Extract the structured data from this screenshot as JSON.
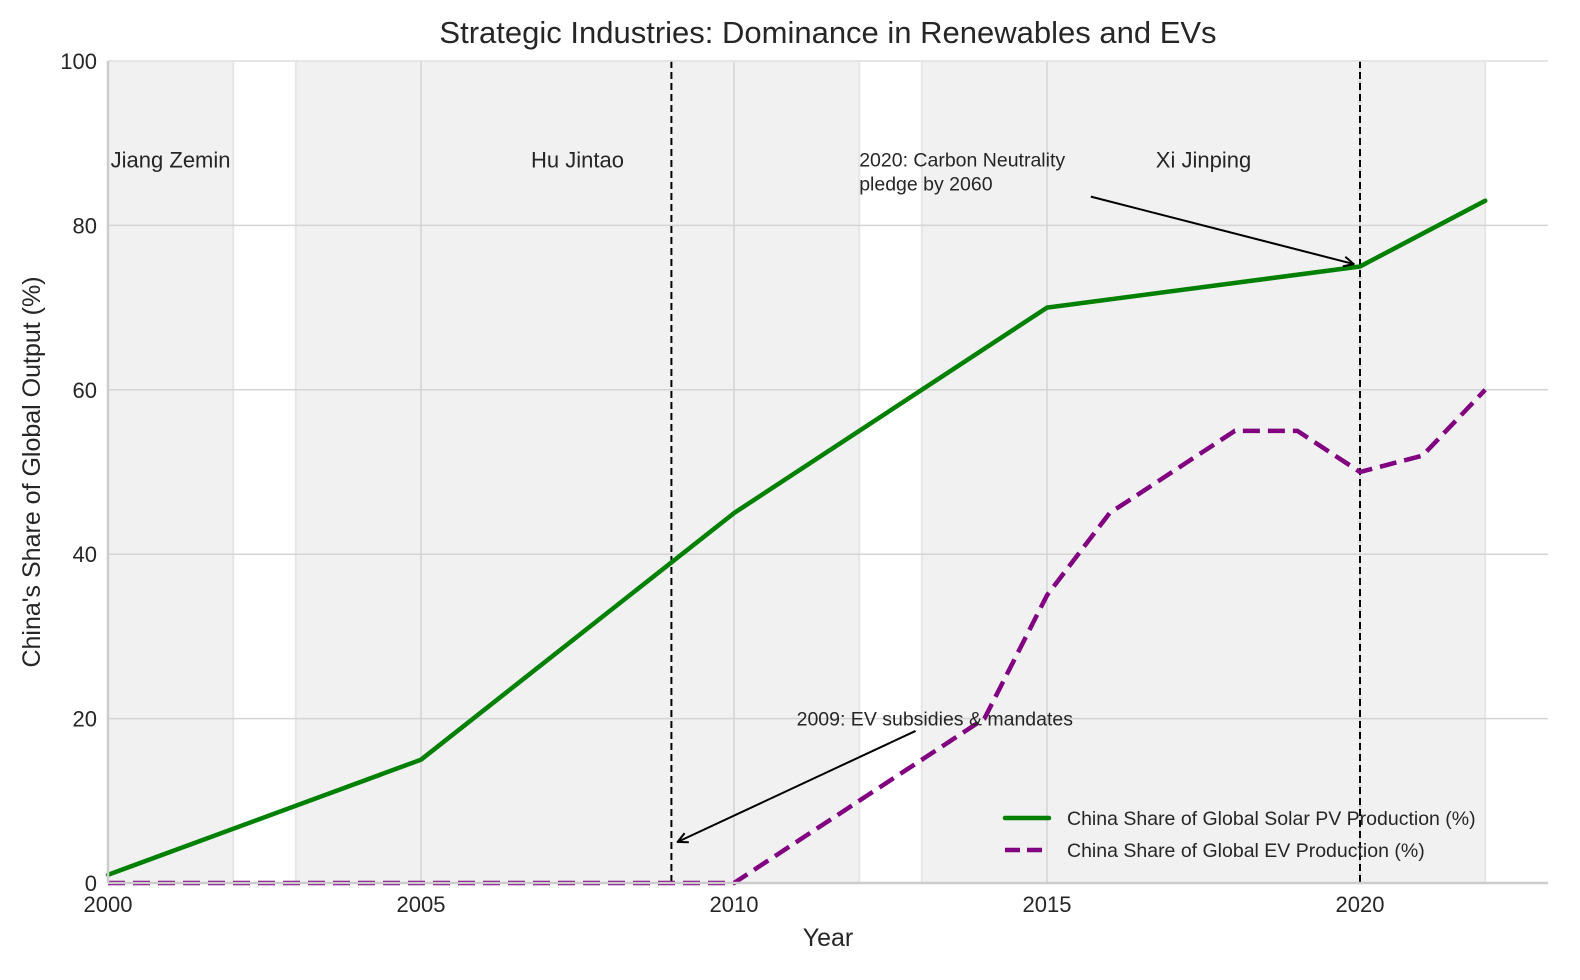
{
  "chart_data": {
    "type": "line",
    "title": "Strategic Industries: Dominance in Renewables and EVs",
    "xlabel": "Year",
    "ylabel": "China's Share of Global Output (%)",
    "xlim": [
      2000,
      2023
    ],
    "ylim": [
      0,
      100
    ],
    "xticks": [
      2000,
      2005,
      2010,
      2015,
      2020
    ],
    "xtick_labels": [
      "2000",
      "2005",
      "2010",
      "2015",
      "2020"
    ],
    "yticks": [
      0,
      20,
      40,
      60,
      80,
      100
    ],
    "ytick_labels": [
      "0",
      "20",
      "40",
      "60",
      "80",
      "100"
    ],
    "grid": true,
    "series": [
      {
        "name": "China Share of Global Solar PV Production (%)",
        "color": "#008000",
        "style": "solid",
        "x": [
          2000,
          2005,
          2010,
          2015,
          2020,
          2022
        ],
        "y": [
          1,
          15,
          45,
          70,
          75,
          83
        ]
      },
      {
        "name": "China Share of Global EV Production (%)",
        "color": "#800080",
        "style": "dashed",
        "x": [
          2000,
          2001,
          2002,
          2003,
          2004,
          2005,
          2006,
          2007,
          2008,
          2009,
          2010,
          2011,
          2012,
          2013,
          2014,
          2015,
          2016,
          2017,
          2018,
          2019,
          2020,
          2021,
          2022
        ],
        "y": [
          0,
          0,
          0,
          0,
          0,
          0,
          0,
          0,
          0,
          0,
          0,
          5,
          10,
          15,
          20,
          35,
          45,
          50,
          55,
          55,
          50,
          52,
          60
        ]
      }
    ],
    "eras": [
      {
        "label": "Jiang Zemin",
        "start": 2000,
        "end": 2002
      },
      {
        "label": "Hu Jintao",
        "start": 2003,
        "end": 2012
      },
      {
        "label": "Xi Jinping",
        "start": 2013,
        "end": 2022
      }
    ],
    "era_colors": {
      "shade": "#f1f1f1"
    },
    "vlines": [
      {
        "x": 2009,
        "style": "dashed",
        "color": "#000000"
      },
      {
        "x": 2020,
        "style": "dashed",
        "color": "#000000"
      }
    ],
    "annotations": [
      {
        "lines": [
          "2009: EV subsidies & mandates"
        ],
        "text_at": [
          2011.0,
          20
        ],
        "arrow_from": [
          2012.9,
          18.5
        ],
        "arrow_to": [
          2009.1,
          5
        ]
      },
      {
        "lines": [
          "2020: Carbon Neutrality",
          "pledge by 2060"
        ],
        "text_at": [
          2012.0,
          88
        ],
        "arrow_from": [
          2015.7,
          83.5
        ],
        "arrow_to": [
          2019.9,
          75.3
        ]
      }
    ],
    "legend": {
      "placement": "lower-right"
    }
  }
}
